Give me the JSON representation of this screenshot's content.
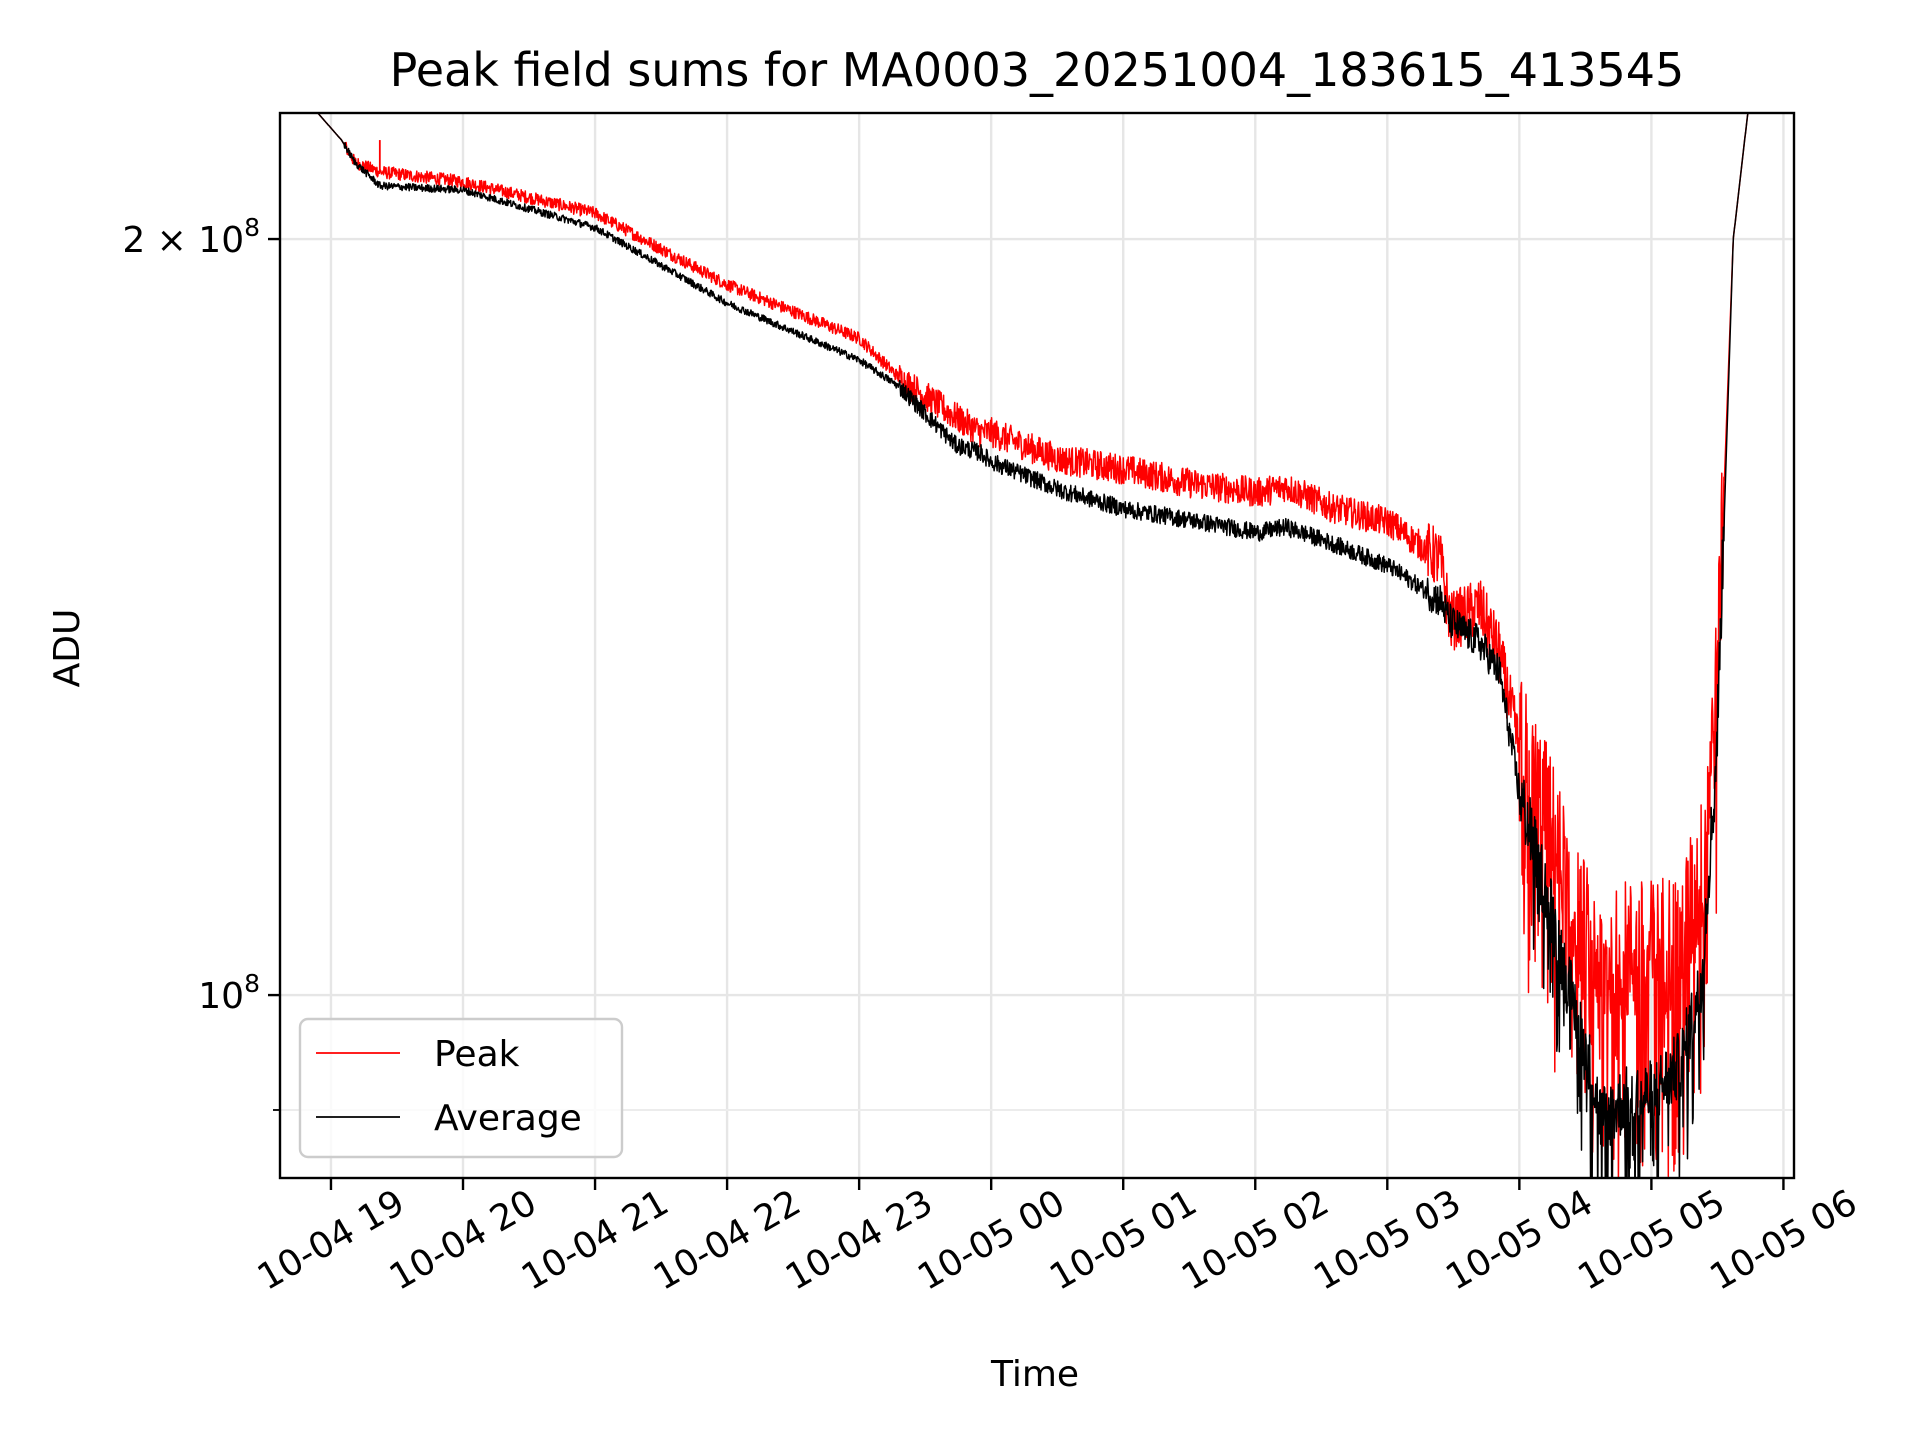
{
  "chart_data": {
    "type": "line",
    "title": "Peak field sums for MA0003_20251004_183615_413545",
    "xlabel": "Time",
    "ylabel": "ADU",
    "yscale": "log",
    "x_units": "hours since 2025-10-04 00:00",
    "xlim": [
      18.614,
      30.08
    ],
    "ylim": [
      84560000,
      224500000
    ],
    "grid": true,
    "x_ticks": [
      {
        "value": 19,
        "label": "10-04 19"
      },
      {
        "value": 20,
        "label": "10-04 20"
      },
      {
        "value": 21,
        "label": "10-04 21"
      },
      {
        "value": 22,
        "label": "10-04 22"
      },
      {
        "value": 23,
        "label": "10-04 23"
      },
      {
        "value": 24,
        "label": "10-05 00"
      },
      {
        "value": 25,
        "label": "10-05 01"
      },
      {
        "value": 26,
        "label": "10-05 02"
      },
      {
        "value": 27,
        "label": "10-05 03"
      },
      {
        "value": 28,
        "label": "10-05 04"
      },
      {
        "value": 29,
        "label": "10-05 05"
      },
      {
        "value": 30,
        "label": "10-05 06"
      }
    ],
    "y_major_ticks": [
      {
        "value": 100000000,
        "base": "10",
        "exp": "8",
        "coef": ""
      },
      {
        "value": 200000000,
        "base": "10",
        "exp": "8",
        "coef": "2 × "
      }
    ],
    "y_minor_ticks": [
      90000000
    ],
    "legend": {
      "position": "lower-left",
      "entries": [
        "Peak",
        "Average"
      ]
    },
    "series": [
      {
        "name": "Peak",
        "color": "#ff0000",
        "x": [
          18.614,
          18.9,
          19.08,
          19.18,
          19.37,
          20.0,
          21.0,
          22.0,
          23.0,
          23.31,
          23.73,
          23.92,
          24.0,
          24.52,
          25.02,
          25.5,
          26.02,
          26.23,
          26.57,
          27.02,
          27.4,
          27.48,
          27.7,
          27.85,
          28.0,
          28.23,
          28.38,
          28.53,
          28.62,
          28.77,
          29.0,
          29.22,
          29.37,
          29.48,
          29.5,
          29.62,
          29.73,
          29.75,
          30.08
        ],
        "y": [
          224500000,
          224500000,
          219000000,
          214600000,
          212700000,
          210800000,
          204800000,
          191800000,
          182600000,
          176000000,
          169900000,
          167500000,
          167500000,
          163400000,
          161900000,
          159900000,
          158500000,
          159400000,
          156400000,
          154200000,
          149000000,
          140800000,
          142700000,
          136900000,
          125300000,
          117100000,
          109400000,
          105000000,
          102100000,
          103900000,
          103900000,
          105700000,
          110800000,
          129600000,
          135000000,
          200000000,
          224500000,
          224500000,
          224500000
        ],
        "spike": {
          "x": 19.37,
          "peak_value": 219000000
        }
      },
      {
        "name": "Average",
        "color": "#000000",
        "x": [
          18.614,
          18.9,
          19.08,
          19.18,
          19.37,
          20.0,
          21.0,
          22.0,
          23.0,
          23.31,
          23.73,
          23.92,
          24.0,
          24.52,
          25.02,
          25.5,
          26.02,
          26.23,
          26.57,
          27.02,
          27.4,
          27.48,
          27.7,
          27.85,
          28.0,
          28.23,
          28.38,
          28.53,
          28.62,
          28.77,
          29.0,
          29.22,
          29.37,
          29.48,
          29.5,
          29.62,
          29.73,
          29.75,
          30.08
        ],
        "y": [
          224500000,
          224500000,
          219000000,
          214600000,
          210000000,
          209200000,
          202100000,
          188600000,
          179000000,
          174600000,
          165600000,
          164400000,
          163100000,
          158900000,
          156100000,
          154600000,
          152800000,
          153600000,
          151400000,
          148100000,
          143600000,
          140800000,
          138100000,
          134400000,
          120400000,
          108600000,
          100500000,
          93800000,
          89200000,
          90600000,
          91300000,
          93800000,
          100500000,
          121100000,
          128000000,
          200000000,
          224500000,
          224500000,
          224500000
        ],
        "minimum": {
          "x": 28.6,
          "value": 85200000
        }
      }
    ]
  }
}
